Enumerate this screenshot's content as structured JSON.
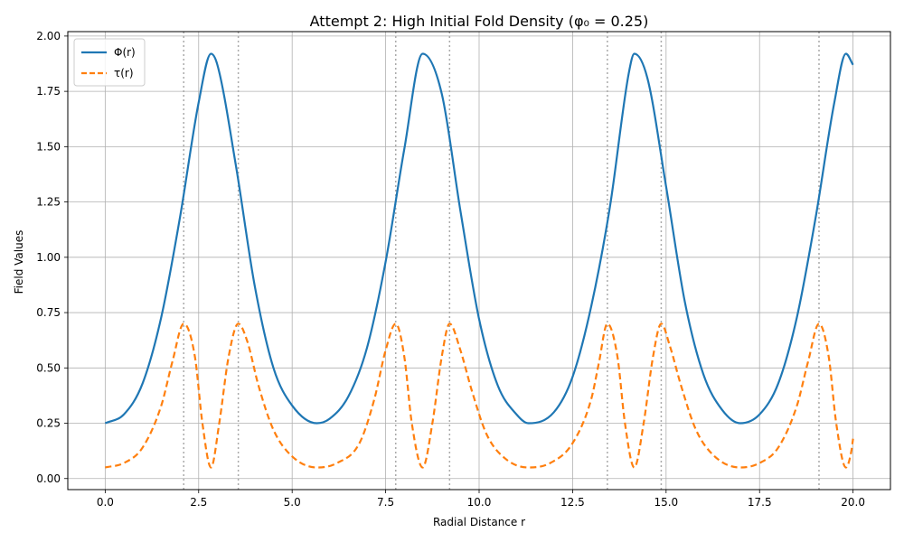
{
  "chart_data": {
    "type": "line",
    "title": "Attempt 2: High Initial Fold Density (φ₀ = 0.25)",
    "xlabel": "Radial Distance r",
    "ylabel": "Field Values",
    "xlim": [
      -1.0,
      21.0
    ],
    "ylim": [
      -0.05,
      2.02
    ],
    "x_ticks": [
      0.0,
      2.5,
      5.0,
      7.5,
      10.0,
      12.5,
      15.0,
      17.5,
      20.0
    ],
    "x_tick_labels": [
      "0.0",
      "2.5",
      "5.0",
      "7.5",
      "10.0",
      "12.5",
      "15.0",
      "17.5",
      "20.0"
    ],
    "y_ticks": [
      0.0,
      0.25,
      0.5,
      0.75,
      1.0,
      1.25,
      1.5,
      1.75,
      2.0
    ],
    "y_tick_labels": [
      "0.00",
      "0.25",
      "0.50",
      "0.75",
      "1.00",
      "1.25",
      "1.50",
      "1.75",
      "2.00"
    ],
    "grid": true,
    "legend_position": "top-left",
    "series": [
      {
        "name": "Φ(r)",
        "style": "solid",
        "color": "#1f77b4",
        "x": [
          0.0,
          0.5,
          1.0,
          1.5,
          2.0,
          2.5,
          2.83,
          3.0,
          3.5,
          4.0,
          4.5,
          5.0,
          5.66,
          6.0,
          6.5,
          7.0,
          7.5,
          8.0,
          8.49,
          9.0,
          9.5,
          10.0,
          10.5,
          11.0,
          11.32,
          12.0,
          12.5,
          13.0,
          13.5,
          14.0,
          14.15,
          14.5,
          15.0,
          15.5,
          16.0,
          16.5,
          16.98,
          17.5,
          18.0,
          18.5,
          19.0,
          19.5,
          19.81,
          20.0
        ],
        "y": [
          0.25,
          0.29,
          0.43,
          0.73,
          1.18,
          1.7,
          1.92,
          1.87,
          1.41,
          0.87,
          0.5,
          0.33,
          0.25,
          0.27,
          0.37,
          0.59,
          0.98,
          1.49,
          1.92,
          1.74,
          1.21,
          0.72,
          0.42,
          0.29,
          0.25,
          0.3,
          0.46,
          0.78,
          1.23,
          1.83,
          1.92,
          1.81,
          1.32,
          0.8,
          0.47,
          0.31,
          0.25,
          0.29,
          0.43,
          0.73,
          1.18,
          1.7,
          1.92,
          1.87
        ]
      },
      {
        "name": "τ(r)",
        "style": "dashed",
        "color": "#ff7f0e",
        "x": [
          0.0,
          0.5,
          1.0,
          1.5,
          1.8,
          2.1,
          2.4,
          2.6,
          2.83,
          3.05,
          3.3,
          3.56,
          3.8,
          4.1,
          4.5,
          5.0,
          5.66,
          6.2,
          6.8,
          7.2,
          7.5,
          7.77,
          8.0,
          8.2,
          8.49,
          8.75,
          9.0,
          9.21,
          9.5,
          9.8,
          10.2,
          10.7,
          11.32,
          11.9,
          12.5,
          13.0,
          13.2,
          13.43,
          13.7,
          13.9,
          14.15,
          14.4,
          14.65,
          14.87,
          15.1,
          15.4,
          15.8,
          16.3,
          16.98,
          17.5,
          18.0,
          18.5,
          18.8,
          19.09,
          19.35,
          19.55,
          19.81,
          19.95,
          20.0
        ],
        "y": [
          0.05,
          0.07,
          0.14,
          0.33,
          0.53,
          0.7,
          0.55,
          0.25,
          0.05,
          0.25,
          0.55,
          0.7,
          0.62,
          0.42,
          0.22,
          0.1,
          0.05,
          0.07,
          0.16,
          0.36,
          0.58,
          0.7,
          0.55,
          0.25,
          0.05,
          0.25,
          0.55,
          0.7,
          0.58,
          0.4,
          0.2,
          0.09,
          0.05,
          0.07,
          0.16,
          0.36,
          0.52,
          0.7,
          0.55,
          0.25,
          0.05,
          0.25,
          0.55,
          0.7,
          0.6,
          0.42,
          0.22,
          0.1,
          0.05,
          0.07,
          0.14,
          0.33,
          0.53,
          0.7,
          0.55,
          0.25,
          0.05,
          0.12,
          0.18
        ]
      }
    ],
    "vlines": [
      2.1,
      3.56,
      7.77,
      9.21,
      13.43,
      14.87,
      19.09
    ]
  }
}
